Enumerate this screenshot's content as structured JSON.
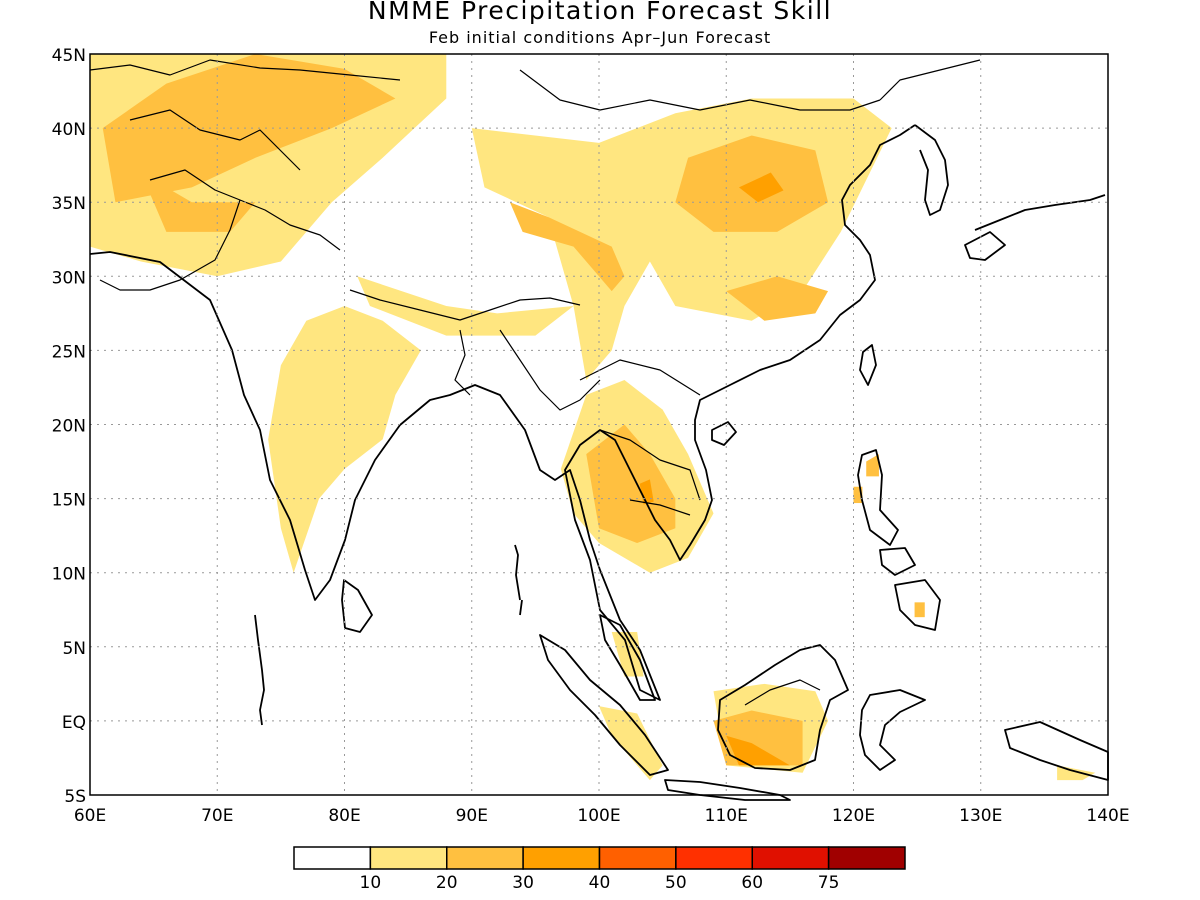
{
  "title": "NMME Precipitation Forecast Skill",
  "subtitle": "Feb initial conditions  Apr–Jun Forecast",
  "axes": {
    "lon_labels": [
      "60E",
      "70E",
      "80E",
      "90E",
      "100E",
      "110E",
      "120E",
      "130E",
      "140E"
    ],
    "lat_labels": [
      "45N",
      "40N",
      "35N",
      "30N",
      "25N",
      "20N",
      "15N",
      "10N",
      "5N",
      "EQ",
      "5S"
    ],
    "lon_range": [
      60,
      140
    ],
    "lat_range": [
      -5,
      45
    ],
    "grid": "dotted"
  },
  "colorbar": {
    "labels": [
      "10",
      "20",
      "30",
      "40",
      "50",
      "60",
      "75"
    ],
    "colors": [
      "#ffffff",
      "#ffe680",
      "#ffc040",
      "#ffa000",
      "#ff6000",
      "#ff3000",
      "#e01000",
      "#a00000"
    ]
  },
  "regions": [
    {
      "name": "central-asia-skill",
      "level": 1,
      "pts": [
        [
          60,
          45
        ],
        [
          88,
          45
        ],
        [
          88,
          42
        ],
        [
          83,
          38
        ],
        [
          79,
          35
        ],
        [
          75,
          31
        ],
        [
          70,
          30
        ],
        [
          64,
          31
        ],
        [
          60,
          32
        ]
      ]
    },
    {
      "name": "central-asia-skill-high",
      "level": 2,
      "pts": [
        [
          61,
          40
        ],
        [
          66,
          43
        ],
        [
          73,
          45
        ],
        [
          80,
          44
        ],
        [
          84,
          42
        ],
        [
          79,
          40
        ],
        [
          73,
          38
        ],
        [
          68,
          36
        ],
        [
          62,
          35
        ]
      ]
    },
    {
      "name": "afghan-skill-high",
      "level": 2,
      "pts": [
        [
          64,
          37
        ],
        [
          68,
          35
        ],
        [
          73,
          35
        ],
        [
          71,
          33
        ],
        [
          66,
          33
        ]
      ]
    },
    {
      "name": "mongolia-china-skill",
      "level": 1,
      "pts": [
        [
          90,
          40
        ],
        [
          100,
          39
        ],
        [
          106,
          41
        ],
        [
          112,
          42
        ],
        [
          120,
          42
        ],
        [
          123,
          40
        ],
        [
          119,
          33
        ],
        [
          116,
          29
        ],
        [
          112,
          27
        ],
        [
          106,
          28
        ],
        [
          104,
          31
        ],
        [
          102,
          28
        ],
        [
          101,
          25
        ],
        [
          99,
          23
        ],
        [
          98,
          28
        ],
        [
          96,
          34
        ],
        [
          91,
          36
        ]
      ]
    },
    {
      "name": "china-skill-high",
      "level": 2,
      "pts": [
        [
          107,
          38
        ],
        [
          112,
          39.5
        ],
        [
          117,
          38.5
        ],
        [
          118,
          35
        ],
        [
          114,
          33
        ],
        [
          109,
          33
        ],
        [
          106,
          35
        ]
      ]
    },
    {
      "name": "china-skill-peak",
      "level": 3,
      "pts": [
        [
          111,
          36
        ],
        [
          113.5,
          37
        ],
        [
          114.5,
          35.8
        ],
        [
          112.5,
          35
        ]
      ]
    },
    {
      "name": "yangtze-skill-high",
      "level": 2,
      "pts": [
        [
          110,
          29
        ],
        [
          114,
          30
        ],
        [
          118,
          29
        ],
        [
          117,
          27.5
        ],
        [
          113,
          27
        ]
      ]
    },
    {
      "name": "tibet-skill-high",
      "level": 2,
      "pts": [
        [
          93,
          35
        ],
        [
          96,
          34
        ],
        [
          101,
          32
        ],
        [
          102,
          30
        ],
        [
          101,
          29
        ],
        [
          98,
          32
        ],
        [
          94,
          33
        ]
      ]
    },
    {
      "name": "india-skill",
      "level": 1,
      "pts": [
        [
          75,
          24
        ],
        [
          77,
          27
        ],
        [
          80,
          28
        ],
        [
          83,
          27
        ],
        [
          86,
          25
        ],
        [
          84,
          22
        ],
        [
          83,
          19
        ],
        [
          80,
          17
        ],
        [
          78,
          15
        ],
        [
          76,
          10
        ],
        [
          75,
          13
        ],
        [
          74,
          19
        ]
      ]
    },
    {
      "name": "himalaya-skill",
      "level": 1,
      "pts": [
        [
          81,
          30
        ],
        [
          88,
          28
        ],
        [
          92,
          27.5
        ],
        [
          98,
          28
        ],
        [
          95,
          26
        ],
        [
          88,
          26
        ],
        [
          82,
          28
        ]
      ]
    },
    {
      "name": "indochina-skill",
      "level": 1,
      "pts": [
        [
          97,
          17
        ],
        [
          99,
          22
        ],
        [
          102,
          23
        ],
        [
          105,
          21
        ],
        [
          107,
          18
        ],
        [
          109,
          14
        ],
        [
          107,
          11
        ],
        [
          104,
          10
        ],
        [
          100,
          12
        ],
        [
          98,
          14
        ]
      ]
    },
    {
      "name": "indochina-skill-high",
      "level": 2,
      "pts": [
        [
          99,
          18
        ],
        [
          102,
          20
        ],
        [
          104,
          18
        ],
        [
          106,
          15
        ],
        [
          106,
          13
        ],
        [
          103,
          12
        ],
        [
          100,
          13
        ]
      ]
    },
    {
      "name": "laos-skill-peak",
      "level": 3,
      "pts": [
        [
          103.2,
          16
        ],
        [
          104,
          16.3
        ],
        [
          104.3,
          14.8
        ],
        [
          103.5,
          14.6
        ]
      ]
    },
    {
      "name": "sumatra-skill",
      "level": 1,
      "pts": [
        [
          100,
          1
        ],
        [
          103,
          0.5
        ],
        [
          105,
          -3
        ],
        [
          104,
          -4
        ],
        [
          101,
          -1
        ]
      ]
    },
    {
      "name": "malaya-skill",
      "level": 1,
      "pts": [
        [
          101,
          6
        ],
        [
          103,
          6
        ],
        [
          103.5,
          3
        ],
        [
          102,
          3
        ]
      ]
    },
    {
      "name": "borneo-skill",
      "level": 1,
      "pts": [
        [
          109,
          2
        ],
        [
          113,
          2.5
        ],
        [
          117,
          2
        ],
        [
          118,
          0
        ],
        [
          116,
          -3.5
        ],
        [
          110,
          -3
        ]
      ]
    },
    {
      "name": "borneo-skill-high",
      "level": 2,
      "pts": [
        [
          109,
          0
        ],
        [
          112,
          0.7
        ],
        [
          116,
          0
        ],
        [
          116,
          -3
        ],
        [
          110,
          -3
        ]
      ]
    },
    {
      "name": "borneo-skill-peak",
      "level": 3,
      "pts": [
        [
          110,
          -1
        ],
        [
          112,
          -1.5
        ],
        [
          115,
          -3
        ],
        [
          111,
          -3
        ]
      ]
    },
    {
      "name": "philippines-skill",
      "level": 2,
      "pts": [
        [
          121,
          17.5
        ],
        [
          122,
          18
        ],
        [
          122,
          16.5
        ],
        [
          121,
          16.5
        ]
      ]
    },
    {
      "name": "luzon-skill-small",
      "level": 2,
      "pts": [
        [
          120,
          15.8
        ],
        [
          120.7,
          15.8
        ],
        [
          120.7,
          14.7
        ],
        [
          120,
          14.7
        ]
      ]
    },
    {
      "name": "mindanao-skill",
      "level": 2,
      "pts": [
        [
          124.8,
          8
        ],
        [
          125.6,
          8
        ],
        [
          125.6,
          7
        ],
        [
          124.8,
          7
        ]
      ]
    },
    {
      "name": "newguinea-skill",
      "level": 1,
      "pts": [
        [
          136,
          -3
        ],
        [
          139,
          -3.5
        ],
        [
          138,
          -4
        ],
        [
          136,
          -4
        ]
      ]
    }
  ]
}
